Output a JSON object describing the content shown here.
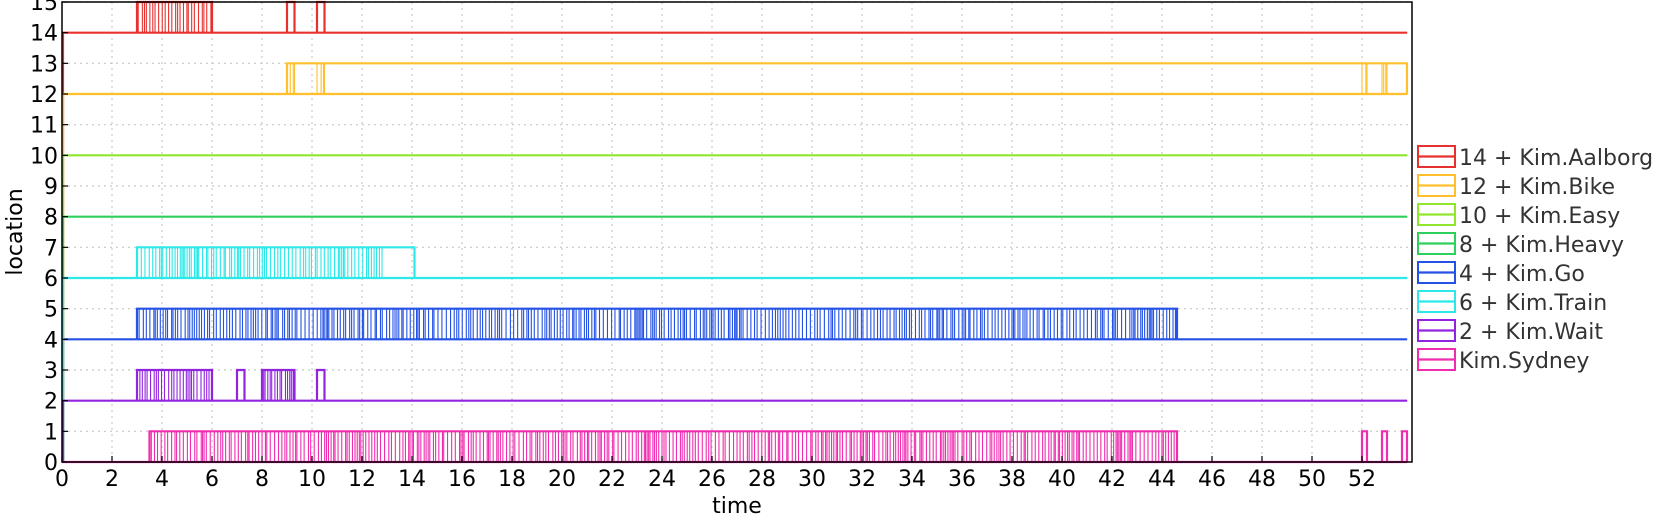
{
  "chart_data": {
    "type": "line",
    "title": "",
    "xlabel": "time",
    "ylabel": "location",
    "xlim": [
      0,
      54
    ],
    "ylim": [
      0,
      15
    ],
    "xticks": [
      0,
      2,
      4,
      6,
      8,
      10,
      12,
      14,
      16,
      18,
      20,
      22,
      24,
      26,
      28,
      30,
      32,
      34,
      36,
      38,
      40,
      42,
      44,
      46,
      48,
      50,
      52
    ],
    "yticks": [
      0,
      1,
      2,
      3,
      4,
      5,
      6,
      7,
      8,
      9,
      10,
      11,
      12,
      13,
      14,
      15
    ],
    "grid": true,
    "legend_position": "right",
    "series": [
      {
        "name": "14 + Kim.Aalborg",
        "color": "#e8312f",
        "base": 14,
        "end": 53.8,
        "spans": [
          [
            3.0,
            6.0
          ],
          [
            9.0,
            9.3
          ],
          [
            10.2,
            10.5
          ]
        ],
        "bursts": [
          [
            3.0,
            6.0
          ]
        ]
      },
      {
        "name": "12 + Kim.Bike",
        "color": "#ffc02c",
        "base": 12,
        "end": 53.8,
        "spans": [
          [
            9.0,
            53.8
          ]
        ],
        "bursts": [
          [
            9.0,
            9.3
          ],
          [
            10.2,
            10.5
          ],
          [
            52.0,
            52.2
          ],
          [
            52.8,
            53.0
          ]
        ]
      },
      {
        "name": "10 + Kim.Easy",
        "color": "#90e62c",
        "base": 10,
        "end": 53.8,
        "spans": [],
        "bursts": []
      },
      {
        "name": "8 + Kim.Heavy",
        "color": "#2cd05a",
        "base": 8,
        "end": 53.8,
        "spans": [],
        "bursts": []
      },
      {
        "name": "4 + Kim.Go",
        "color": "#2452e6",
        "base": 4,
        "end": 53.8,
        "spans": [
          [
            3.0,
            44.6
          ]
        ],
        "bursts": [
          [
            3.0,
            44.6
          ]
        ]
      },
      {
        "name": "6 + Kim.Train",
        "color": "#2ce8e8",
        "base": 6,
        "end": 53.8,
        "spans": [
          [
            3.0,
            14.1
          ]
        ],
        "bursts": [
          [
            3.0,
            12.8
          ]
        ]
      },
      {
        "name": "2 + Kim.Wait",
        "color": "#9224e0",
        "base": 2,
        "end": 53.8,
        "spans": [
          [
            3.0,
            6.0
          ],
          [
            7.0,
            7.3
          ],
          [
            8.0,
            9.3
          ],
          [
            10.2,
            10.5
          ]
        ],
        "bursts": [
          [
            3.0,
            6.0
          ],
          [
            8.0,
            9.3
          ]
        ]
      },
      {
        "name": "Kim.Sydney",
        "color": "#f02cb0",
        "base": 0,
        "end": 53.8,
        "spans": [
          [
            3.5,
            44.6
          ],
          [
            52.0,
            52.2
          ],
          [
            52.8,
            53.0
          ],
          [
            53.6,
            53.8
          ]
        ],
        "bursts": [
          [
            3.5,
            44.6
          ]
        ]
      }
    ]
  }
}
